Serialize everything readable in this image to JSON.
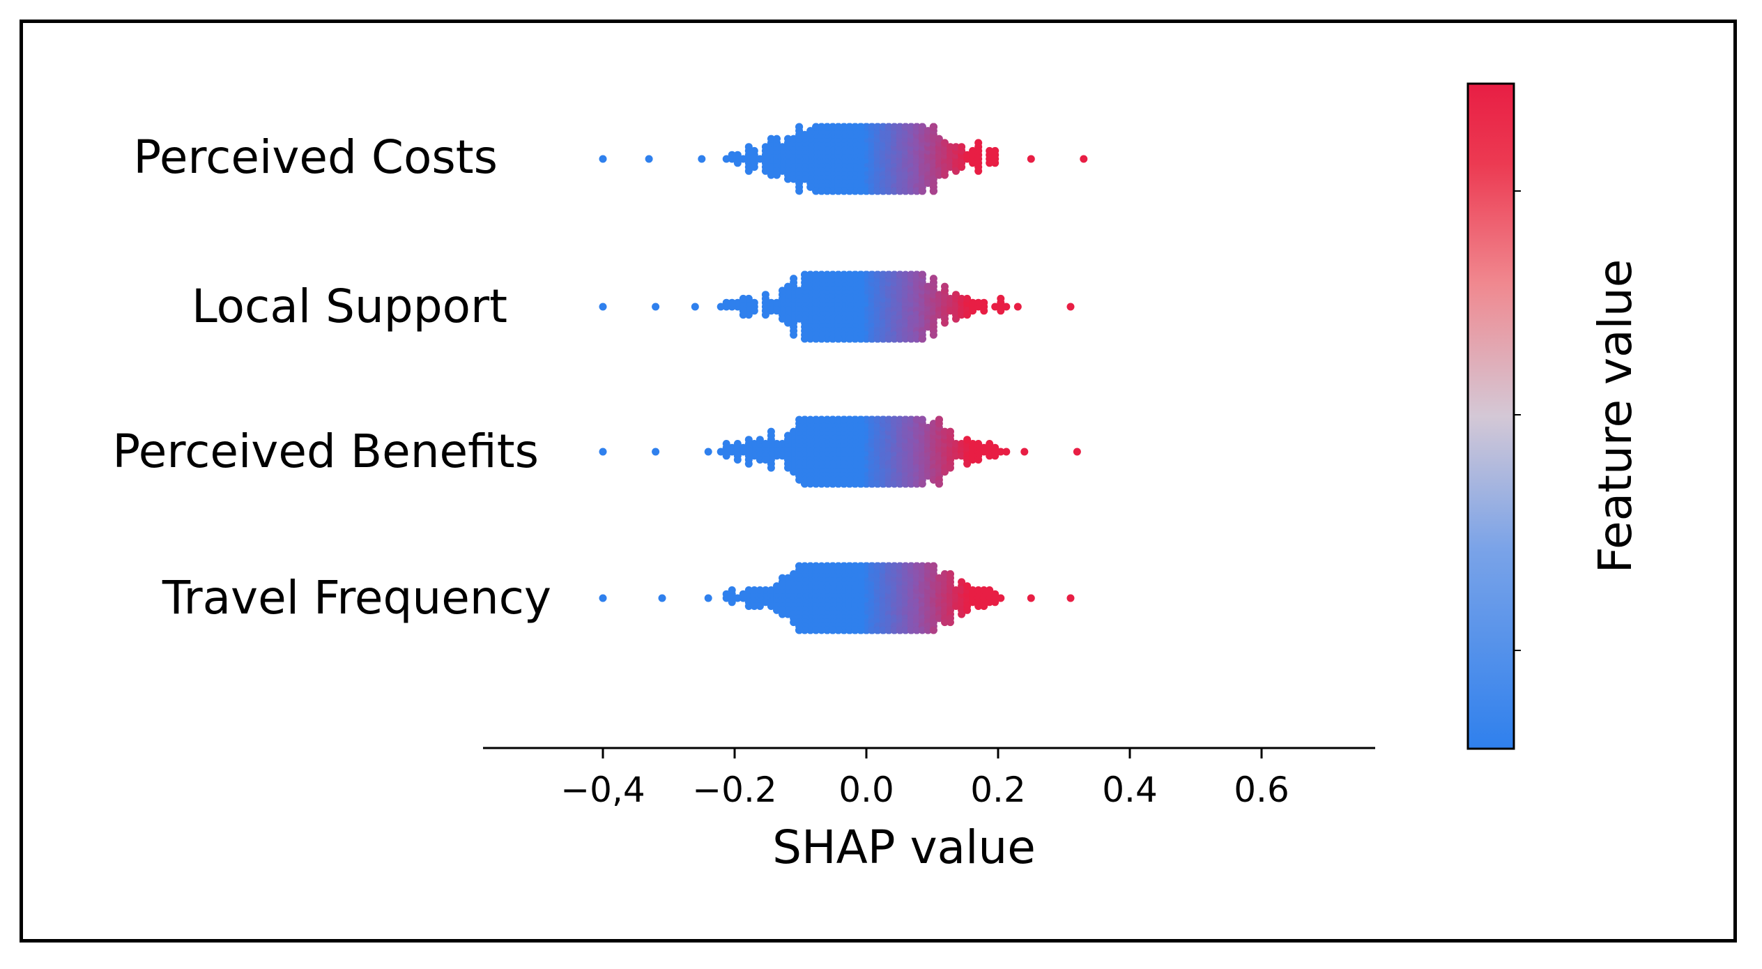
{
  "chart_data": {
    "type": "scatter",
    "subtype": "shap-beeswarm",
    "title": "",
    "xlabel": "SHAP value",
    "ylabel": "",
    "xlim": [
      -0.58,
      0.78
    ],
    "x_ticks": [
      -0.4,
      -0.2,
      0.0,
      0.2,
      0.4,
      0.6
    ],
    "x_tick_labels": [
      "−0,4",
      "−0.2",
      "0.0",
      "0.2",
      "0.4",
      "0.6"
    ],
    "features": [
      {
        "name": "Perceived Costs",
        "min": -0.4,
        "max": 0.33,
        "spread": 0.15,
        "outliers": [
          -0.4,
          -0.33,
          -0.25,
          0.25,
          0.33
        ]
      },
      {
        "name": "Local Support",
        "min": -0.4,
        "max": 0.31,
        "spread": 0.14,
        "outliers": [
          -0.4,
          -0.32,
          -0.26,
          0.23,
          0.31
        ]
      },
      {
        "name": "Perceived Benefits",
        "min": -0.4,
        "max": 0.32,
        "spread": 0.15,
        "outliers": [
          -0.4,
          -0.32,
          -0.24,
          0.24,
          0.32
        ]
      },
      {
        "name": "Travel Frequency",
        "min": -0.4,
        "max": 0.31,
        "spread": 0.15,
        "outliers": [
          -0.4,
          -0.31,
          -0.24,
          0.25,
          0.31
        ]
      }
    ],
    "colorbar": {
      "label": "Feature value",
      "colors": [
        "#2f80ed",
        "#7aa3e8",
        "#d4c8d6",
        "#f0888f",
        "#ec3a52",
        "#e81e44"
      ]
    }
  }
}
